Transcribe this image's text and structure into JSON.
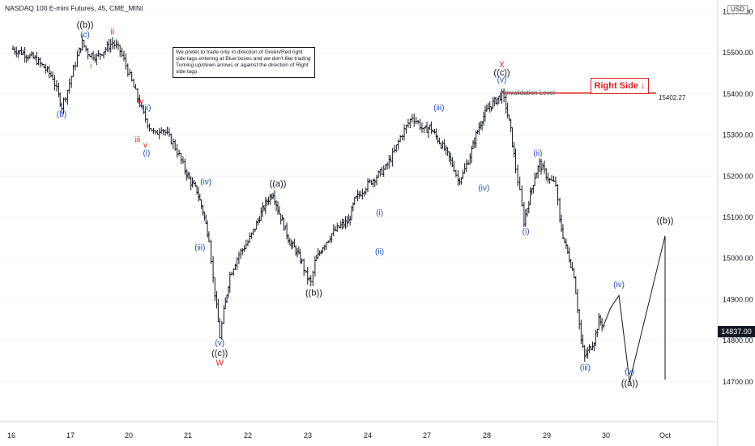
{
  "header": {
    "title": "NASDAQ 100 E-mini Futures, 45, CME_MINI",
    "currency": "USD"
  },
  "note": "We prefer to trade only in direction of Green/Red right side tags entering at Blue boxes and we don't like trading Turning up/down arrows or against the direction of Right side tags",
  "right_side_tag": {
    "label": "Right Side",
    "arrow": "↓",
    "color": "#e01e1e"
  },
  "invalidation": {
    "label": "Invalidation Level",
    "value": 15402.27,
    "value_label": "15402.27",
    "color": "#e01e1e"
  },
  "current_price": {
    "value": 14837.0,
    "label": "14837.00"
  },
  "chart_data": {
    "type": "line",
    "ylim": [
      14600,
      15600
    ],
    "y_ticks": [
      {
        "value": 15600,
        "label": "15600.00"
      },
      {
        "value": 15500,
        "label": "15500.00"
      },
      {
        "value": 15400,
        "label": "15400.00"
      },
      {
        "value": 15300,
        "label": "15300.00"
      },
      {
        "value": 15200,
        "label": "15200.00"
      },
      {
        "value": 15100,
        "label": "15100.00"
      },
      {
        "value": 15000,
        "label": "15000.00"
      },
      {
        "value": 14900,
        "label": "14900.00"
      },
      {
        "value": 14800,
        "label": "14800.00"
      },
      {
        "value": 14700,
        "label": "14700.00"
      }
    ],
    "x_ticks": [
      "16",
      "17",
      "20",
      "21",
      "22",
      "23",
      "24",
      "27",
      "28",
      "29",
      "30",
      "Oct"
    ],
    "price_path": [
      [
        15.0,
        15510
      ],
      [
        15.2,
        15500
      ],
      [
        15.4,
        15485
      ],
      [
        15.55,
        15465
      ],
      [
        15.7,
        15440
      ],
      [
        15.8,
        15395
      ],
      [
        15.85,
        15370
      ],
      [
        15.95,
        15410
      ],
      [
        16.05,
        15460
      ],
      [
        16.15,
        15505
      ],
      [
        16.2,
        15525
      ],
      [
        16.3,
        15500
      ],
      [
        16.45,
        15490
      ],
      [
        16.6,
        15510
      ],
      [
        16.72,
        15525
      ],
      [
        16.85,
        15505
      ],
      [
        16.95,
        15470
      ],
      [
        17.05,
        15430
      ],
      [
        17.15,
        15390
      ],
      [
        17.25,
        15350
      ],
      [
        17.35,
        15320
      ],
      [
        17.45,
        15300
      ],
      [
        17.55,
        15320
      ],
      [
        17.65,
        15300
      ],
      [
        17.75,
        15280
      ],
      [
        17.85,
        15250
      ],
      [
        17.95,
        15215
      ],
      [
        18.05,
        15185
      ],
      [
        18.15,
        15165
      ],
      [
        18.25,
        15115
      ],
      [
        18.35,
        15050
      ],
      [
        18.42,
        14950
      ],
      [
        18.48,
        14880
      ],
      [
        18.53,
        14810
      ],
      [
        18.6,
        14870
      ],
      [
        18.7,
        14960
      ],
      [
        18.85,
        15010
      ],
      [
        19.0,
        15040
      ],
      [
        19.12,
        15075
      ],
      [
        19.22,
        15110
      ],
      [
        19.32,
        15140
      ],
      [
        19.42,
        15160
      ],
      [
        19.5,
        15120
      ],
      [
        19.6,
        15080
      ],
      [
        19.7,
        15040
      ],
      [
        19.8,
        15020
      ],
      [
        19.9,
        14990
      ],
      [
        19.97,
        14960
      ],
      [
        20.05,
        14940
      ],
      [
        20.12,
        14990
      ],
      [
        20.25,
        15030
      ],
      [
        20.4,
        15060
      ],
      [
        20.55,
        15080
      ],
      [
        20.68,
        15090
      ],
      [
        20.78,
        15140
      ],
      [
        20.88,
        15160
      ],
      [
        21.0,
        15180
      ],
      [
        21.15,
        15200
      ],
      [
        21.3,
        15220
      ],
      [
        21.45,
        15260
      ],
      [
        21.55,
        15295
      ],
      [
        21.65,
        15320
      ],
      [
        21.75,
        15345
      ],
      [
        21.85,
        15330
      ],
      [
        21.95,
        15310
      ],
      [
        22.05,
        15320
      ],
      [
        22.18,
        15290
      ],
      [
        22.32,
        15260
      ],
      [
        22.45,
        15220
      ],
      [
        22.52,
        15190
      ],
      [
        22.6,
        15205
      ],
      [
        22.72,
        15250
      ],
      [
        22.82,
        15300
      ],
      [
        22.92,
        15340
      ],
      [
        23.05,
        15370
      ],
      [
        23.15,
        15385
      ],
      [
        23.25,
        15398
      ],
      [
        23.32,
        15370
      ],
      [
        23.4,
        15310
      ],
      [
        23.48,
        15220
      ],
      [
        23.55,
        15160
      ],
      [
        23.62,
        15090
      ],
      [
        23.7,
        15140
      ],
      [
        23.8,
        15200
      ],
      [
        23.88,
        15230
      ],
      [
        23.96,
        15210
      ],
      [
        24.05,
        15190
      ],
      [
        24.15,
        15180
      ],
      [
        24.22,
        15090
      ],
      [
        24.3,
        15040
      ],
      [
        24.38,
        15000
      ],
      [
        24.46,
        14960
      ],
      [
        24.52,
        14880
      ],
      [
        24.58,
        14800
      ],
      [
        24.64,
        14760
      ],
      [
        24.72,
        14780
      ],
      [
        24.8,
        14800
      ],
      [
        24.88,
        14850
      ],
      [
        24.96,
        14837
      ]
    ],
    "projection": [
      [
        24.96,
        14837
      ],
      [
        25.08,
        14880
      ],
      [
        25.22,
        14910
      ],
      [
        25.4,
        14700
      ],
      [
        26.05,
        15055
      ],
      [
        26.3,
        14705
      ]
    ],
    "wave_labels": [
      {
        "text": "((b))",
        "x": 16.25,
        "y": 15562,
        "color": "black"
      },
      {
        "text": "(c)",
        "x": 16.25,
        "y": 15538,
        "color": "blue"
      },
      {
        "text": "ii",
        "x": 16.72,
        "y": 15545,
        "color": "red"
      },
      {
        "text": "i",
        "x": 16.35,
        "y": 15462,
        "color": "orange"
      },
      {
        "text": "(b)",
        "x": 15.85,
        "y": 15345,
        "color": "blue"
      },
      {
        "text": "iv",
        "x": 17.2,
        "y": 15376,
        "color": "red"
      },
      {
        "text": "(ii)",
        "x": 17.3,
        "y": 15360,
        "color": "blue"
      },
      {
        "text": "iii",
        "x": 17.15,
        "y": 15282,
        "color": "red"
      },
      {
        "text": "v",
        "x": 17.28,
        "y": 15270,
        "color": "red"
      },
      {
        "text": "(i)",
        "x": 17.3,
        "y": 15250,
        "color": "blue"
      },
      {
        "text": "(iv)",
        "x": 18.3,
        "y": 15180,
        "color": "blue"
      },
      {
        "text": "(iii)",
        "x": 18.2,
        "y": 15020,
        "color": "blue"
      },
      {
        "text": "(v)",
        "x": 18.53,
        "y": 14788,
        "color": "blue"
      },
      {
        "text": "((c))",
        "x": 18.53,
        "y": 14763,
        "color": "black"
      },
      {
        "text": "W",
        "x": 18.53,
        "y": 14740,
        "color": "red"
      },
      {
        "text": "((a))",
        "x": 19.5,
        "y": 15175,
        "color": "black"
      },
      {
        "text": "((b))",
        "x": 20.1,
        "y": 14910,
        "color": "black"
      },
      {
        "text": "(i)",
        "x": 21.2,
        "y": 15105,
        "color": "blue"
      },
      {
        "text": "(ii)",
        "x": 21.2,
        "y": 15010,
        "color": "blue"
      },
      {
        "text": "(iii)",
        "x": 22.2,
        "y": 15360,
        "color": "blue"
      },
      {
        "text": "(iv)",
        "x": 22.95,
        "y": 15165,
        "color": "blue"
      },
      {
        "text": "X",
        "x": 23.25,
        "y": 15465,
        "color": "red"
      },
      {
        "text": "((c))",
        "x": 23.25,
        "y": 15445,
        "color": "black"
      },
      {
        "text": "(v)",
        "x": 23.25,
        "y": 15428,
        "color": "blue"
      },
      {
        "text": "(ii)",
        "x": 23.85,
        "y": 15250,
        "color": "blue"
      },
      {
        "text": "(i)",
        "x": 23.65,
        "y": 15060,
        "color": "blue"
      },
      {
        "text": "(iii)",
        "x": 24.65,
        "y": 14728,
        "color": "blue"
      },
      {
        "text": "(iv)",
        "x": 25.22,
        "y": 14930,
        "color": "blue"
      },
      {
        "text": "(v)",
        "x": 25.4,
        "y": 14718,
        "color": "blue"
      },
      {
        "text": "((a))",
        "x": 25.4,
        "y": 14690,
        "color": "black"
      },
      {
        "text": "((b))",
        "x": 26.05,
        "y": 15085,
        "color": "black"
      }
    ]
  }
}
